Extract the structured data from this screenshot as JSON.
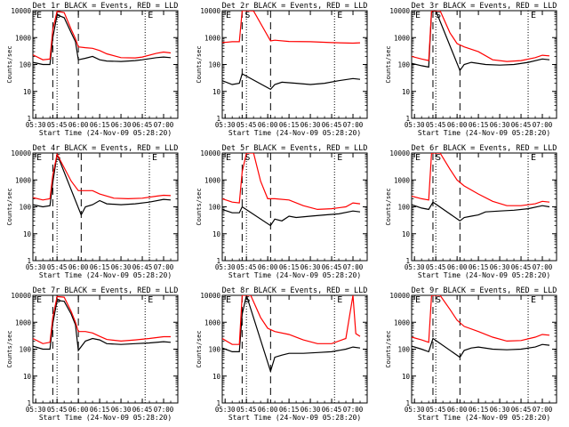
{
  "shared": {
    "ylabel": "Counts/sec",
    "xlabel": "Start Time (24-Nov-09 05:28:20)",
    "x_tick_labels": [
      "05:30",
      "05:45",
      "06:00",
      "06:15",
      "06:30",
      "06:45",
      "07:00"
    ],
    "y_tick_labels": [
      "1",
      "10",
      "100",
      "1000",
      "10000"
    ],
    "marker_labels": [
      "E",
      "S",
      "E"
    ]
  },
  "colors": {
    "events": "#000000",
    "lld": "#ff0000",
    "background": "#ffffff"
  },
  "chart_data": [
    {
      "type": "line",
      "title": "Det 1r BLACK = Events, RED = LLD",
      "xlabel": "Start Time (24-Nov-09 05:28:20)",
      "ylabel": "Counts/sec",
      "x_ticks": [
        "05:30",
        "05:45",
        "06:00",
        "06:15",
        "06:30",
        "06:45",
        "07:00"
      ],
      "y_scale": "log",
      "ylim": [
        1,
        10000
      ],
      "markers": {
        "dashed": [
          "05:42",
          "06:00"
        ],
        "dotted": [
          "05:45",
          "06:47"
        ],
        "labels": [
          "E",
          "S",
          "E"
        ]
      },
      "series": [
        {
          "name": "Events",
          "color": "#000000",
          "x": [
            "05:28",
            "05:35",
            "05:40",
            "05:42",
            "05:45",
            "05:50",
            "05:55",
            "05:58",
            "06:00",
            "06:05",
            "06:10",
            "06:15",
            "06:20",
            "06:30",
            "06:40",
            "06:45",
            "06:55",
            "07:00",
            "07:05"
          ],
          "y": [
            120,
            100,
            100,
            1000,
            7000,
            5500,
            1500,
            700,
            150,
            170,
            200,
            150,
            135,
            130,
            140,
            150,
            180,
            190,
            180
          ]
        },
        {
          "name": "LLD",
          "color": "#ff0000",
          "x": [
            "05:28",
            "05:35",
            "05:40",
            "05:42",
            "05:45",
            "05:50",
            "05:55",
            "05:58",
            "06:00",
            "06:05",
            "06:10",
            "06:15",
            "06:20",
            "06:30",
            "06:40",
            "06:45",
            "06:55",
            "07:00",
            "07:05"
          ],
          "y": [
            230,
            150,
            160,
            2000,
            9500,
            8500,
            2000,
            900,
            450,
            420,
            400,
            330,
            250,
            180,
            175,
            190,
            260,
            290,
            270
          ]
        }
      ]
    },
    {
      "type": "line",
      "title": "Det 2r BLACK = Events, RED = LLD",
      "xlabel": "Start Time (24-Nov-09 05:28:20)",
      "ylabel": "Counts/sec",
      "x_ticks": [
        "05:30",
        "05:45",
        "06:00",
        "06:15",
        "06:30",
        "06:45",
        "07:00"
      ],
      "y_scale": "log",
      "ylim": [
        1,
        10000
      ],
      "markers": {
        "dashed": [
          "05:42",
          "06:02"
        ],
        "dotted": [
          "05:45",
          "06:47"
        ],
        "labels": [
          "E",
          "S",
          "E"
        ]
      },
      "series": [
        {
          "name": "Events",
          "color": "#000000",
          "x": [
            "05:28",
            "05:35",
            "05:40",
            "05:42",
            "06:02",
            "06:05",
            "06:10",
            "06:20",
            "06:30",
            "06:40",
            "06:50",
            "07:00",
            "07:05"
          ],
          "y": [
            25,
            18,
            20,
            45,
            12,
            18,
            22,
            20,
            18,
            20,
            25,
            30,
            28
          ]
        },
        {
          "name": "LLD",
          "color": "#ff0000",
          "x": [
            "05:28",
            "05:35",
            "05:40",
            "05:42",
            "05:45",
            "05:50",
            "06:02",
            "06:05",
            "06:15",
            "06:30",
            "06:45",
            "07:00",
            "07:05"
          ],
          "y": [
            650,
            700,
            700,
            10000,
            10000,
            9800,
            750,
            800,
            720,
            700,
            650,
            620,
            640
          ]
        }
      ]
    },
    {
      "type": "line",
      "title": "Det 3r BLACK = Events, RED = LLD",
      "xlabel": "Start Time (24-Nov-09 05:28:20)",
      "ylabel": "Counts/sec",
      "x_ticks": [
        "05:30",
        "05:45",
        "06:00",
        "06:15",
        "06:30",
        "06:45",
        "07:00"
      ],
      "y_scale": "log",
      "ylim": [
        1,
        10000
      ],
      "markers": {
        "dashed": [
          "05:43",
          "06:02"
        ],
        "dotted": [
          "05:45",
          "06:50"
        ],
        "labels": [
          "E",
          "S",
          "E"
        ]
      },
      "series": [
        {
          "name": "Events",
          "color": "#000000",
          "x": [
            "05:28",
            "05:35",
            "05:40",
            "05:42",
            "05:45",
            "06:02",
            "06:05",
            "06:10",
            "06:20",
            "06:30",
            "06:40",
            "06:50",
            "07:00",
            "07:05"
          ],
          "y": [
            110,
            90,
            80,
            9000,
            10000,
            60,
            100,
            120,
            100,
            95,
            100,
            120,
            160,
            150
          ]
        },
        {
          "name": "LLD",
          "color": "#ff0000",
          "x": [
            "05:28",
            "05:35",
            "05:40",
            "05:42",
            "05:48",
            "05:55",
            "06:00",
            "06:05",
            "06:15",
            "06:25",
            "06:35",
            "06:45",
            "06:55",
            "07:00",
            "07:05"
          ],
          "y": [
            200,
            160,
            140,
            10000,
            10000,
            1500,
            600,
            450,
            300,
            150,
            130,
            140,
            180,
            220,
            210
          ]
        }
      ]
    },
    {
      "type": "line",
      "title": "Det 4r BLACK = Events, RED = LLD",
      "xlabel": "Start Time (24-Nov-09 05:28:20)",
      "ylabel": "Counts/sec",
      "x_ticks": [
        "05:30",
        "05:45",
        "06:00",
        "06:15",
        "06:30",
        "06:45",
        "07:00"
      ],
      "y_scale": "log",
      "ylim": [
        1,
        10000
      ],
      "markers": {
        "dashed": [
          "05:42",
          "06:02"
        ],
        "dotted": [
          "05:45",
          "06:50"
        ],
        "labels": [
          "E",
          "S",
          "E"
        ]
      },
      "series": [
        {
          "name": "Events",
          "color": "#000000",
          "x": [
            "05:28",
            "05:35",
            "05:40",
            "05:42",
            "05:45",
            "06:02",
            "06:05",
            "06:10",
            "06:15",
            "06:20",
            "06:30",
            "06:40",
            "06:50",
            "07:00",
            "07:05"
          ],
          "y": [
            120,
            100,
            110,
            800,
            9000,
            50,
            100,
            120,
            170,
            130,
            120,
            130,
            150,
            190,
            180
          ]
        },
        {
          "name": "LLD",
          "color": "#ff0000",
          "x": [
            "05:28",
            "05:35",
            "05:40",
            "05:42",
            "05:45",
            "05:55",
            "06:00",
            "06:10",
            "06:15",
            "06:25",
            "06:35",
            "06:45",
            "06:55",
            "07:00",
            "07:05"
          ],
          "y": [
            220,
            180,
            200,
            1500,
            9000,
            900,
            400,
            400,
            300,
            210,
            200,
            210,
            250,
            270,
            260
          ]
        }
      ]
    },
    {
      "type": "line",
      "title": "Det 5r BLACK = Events, RED = LLD",
      "xlabel": "Start Time (24-Nov-09 05:28:20)",
      "ylabel": "Counts/sec",
      "x_ticks": [
        "05:30",
        "05:45",
        "06:00",
        "06:15",
        "06:30",
        "06:45",
        "07:00"
      ],
      "y_scale": "log",
      "ylim": [
        1,
        10000
      ],
      "markers": {
        "dashed": [
          "05:42",
          "06:02"
        ],
        "dotted": [
          "05:45",
          "06:47"
        ],
        "labels": [
          "E",
          "S",
          "E"
        ]
      },
      "series": [
        {
          "name": "Events",
          "color": "#000000",
          "x": [
            "05:28",
            "05:35",
            "05:40",
            "05:42",
            "06:02",
            "06:05",
            "06:10",
            "06:15",
            "06:20",
            "06:30",
            "06:40",
            "06:50",
            "07:00",
            "07:05"
          ],
          "y": [
            80,
            60,
            60,
            100,
            20,
            35,
            30,
            45,
            40,
            45,
            50,
            55,
            70,
            65
          ]
        },
        {
          "name": "LLD",
          "color": "#ff0000",
          "x": [
            "05:28",
            "05:35",
            "05:40",
            "05:42",
            "05:45",
            "05:50",
            "05:55",
            "06:00",
            "06:05",
            "06:15",
            "06:25",
            "06:35",
            "06:45",
            "06:55",
            "07:00",
            "07:05"
          ],
          "y": [
            200,
            150,
            140,
            2000,
            10000,
            10000,
            900,
            200,
            200,
            180,
            110,
            80,
            85,
            100,
            140,
            130
          ]
        }
      ]
    },
    {
      "type": "line",
      "title": "Det 6r BLACK = Events, RED = LLD",
      "xlabel": "Start Time (24-Nov-09 05:28:20)",
      "ylabel": "Counts/sec",
      "x_ticks": [
        "05:30",
        "05:45",
        "06:00",
        "06:15",
        "06:30",
        "06:45",
        "07:00"
      ],
      "y_scale": "log",
      "ylim": [
        1,
        10000
      ],
      "markers": {
        "dashed": [
          "05:43",
          "06:02"
        ],
        "dotted": [
          "05:45",
          "06:50"
        ],
        "labels": [
          "E",
          "S",
          "E"
        ]
      },
      "series": [
        {
          "name": "Events",
          "color": "#000000",
          "x": [
            "05:28",
            "05:35",
            "05:40",
            "05:43",
            "06:02",
            "06:05",
            "06:10",
            "06:15",
            "06:20",
            "06:30",
            "06:40",
            "06:50",
            "07:00",
            "07:05"
          ],
          "y": [
            120,
            90,
            80,
            150,
            30,
            40,
            45,
            50,
            65,
            70,
            75,
            85,
            110,
            100
          ]
        },
        {
          "name": "LLD",
          "color": "#ff0000",
          "x": [
            "05:28",
            "05:35",
            "05:40",
            "05:42",
            "05:48",
            "05:55",
            "06:00",
            "06:05",
            "06:15",
            "06:25",
            "06:35",
            "06:45",
            "06:55",
            "07:00",
            "07:05"
          ],
          "y": [
            250,
            200,
            180,
            10000,
            10000,
            2500,
            1000,
            600,
            300,
            160,
            110,
            110,
            130,
            160,
            150
          ]
        }
      ]
    },
    {
      "type": "line",
      "title": "Det 7r BLACK = Events, RED = LLD",
      "xlabel": "Start Time (24-Nov-09 05:28:20)",
      "ylabel": "Counts/sec",
      "x_ticks": [
        "05:30",
        "05:45",
        "06:00",
        "06:15",
        "06:30",
        "06:45",
        "07:00"
      ],
      "y_scale": "log",
      "ylim": [
        1,
        10000
      ],
      "markers": {
        "dashed": [
          "05:42",
          "06:00"
        ],
        "dotted": [
          "05:45",
          "06:47"
        ],
        "labels": [
          "E",
          "S",
          "E"
        ]
      },
      "series": [
        {
          "name": "Events",
          "color": "#000000",
          "x": [
            "05:28",
            "05:35",
            "05:40",
            "05:42",
            "05:45",
            "05:50",
            "05:55",
            "05:58",
            "06:00",
            "06:05",
            "06:10",
            "06:15",
            "06:20",
            "06:30",
            "06:40",
            "06:50",
            "07:00",
            "07:05"
          ],
          "y": [
            130,
            100,
            100,
            900,
            6500,
            6000,
            2000,
            800,
            90,
            200,
            250,
            220,
            160,
            150,
            160,
            170,
            190,
            180
          ]
        },
        {
          "name": "LLD",
          "color": "#ff0000",
          "x": [
            "05:28",
            "05:35",
            "05:40",
            "05:42",
            "05:45",
            "05:50",
            "05:55",
            "05:58",
            "06:00",
            "06:05",
            "06:10",
            "06:15",
            "06:20",
            "06:30",
            "06:40",
            "06:50",
            "07:00",
            "07:05"
          ],
          "y": [
            250,
            160,
            180,
            1500,
            9000,
            8500,
            2500,
            1000,
            450,
            450,
            400,
            300,
            230,
            200,
            220,
            250,
            290,
            290
          ]
        }
      ]
    },
    {
      "type": "line",
      "title": "Det 8r BLACK = Events, RED = LLD",
      "xlabel": "Start Time (24-Nov-09 05:28:20)",
      "ylabel": "Counts/sec",
      "x_ticks": [
        "05:30",
        "05:45",
        "06:00",
        "06:15",
        "06:30",
        "06:45",
        "07:00"
      ],
      "y_scale": "log",
      "ylim": [
        1,
        10000
      ],
      "markers": {
        "dashed": [
          "05:42",
          "06:02"
        ],
        "dotted": [
          "05:45",
          "06:47"
        ],
        "labels": [
          "E",
          "S",
          "E"
        ]
      },
      "series": [
        {
          "name": "Events",
          "color": "#000000",
          "x": [
            "05:28",
            "05:35",
            "05:40",
            "05:42",
            "05:45",
            "06:02",
            "06:05",
            "06:10",
            "06:15",
            "06:25",
            "06:35",
            "06:45",
            "06:55",
            "07:00",
            "07:05"
          ],
          "y": [
            110,
            80,
            80,
            2000,
            10000,
            15,
            50,
            60,
            70,
            70,
            75,
            80,
            100,
            120,
            110
          ]
        },
        {
          "name": "LLD",
          "color": "#ff0000",
          "x": [
            "05:28",
            "05:35",
            "05:40",
            "05:42",
            "05:48",
            "05:55",
            "06:00",
            "06:05",
            "06:15",
            "06:25",
            "06:35",
            "06:45",
            "06:55",
            "07:00",
            "07:02",
            "07:05"
          ],
          "y": [
            250,
            150,
            150,
            10000,
            10000,
            1500,
            600,
            450,
            350,
            220,
            160,
            160,
            250,
            10000,
            380,
            300
          ]
        }
      ]
    },
    {
      "type": "line",
      "title": "Det 9r BLACK = Events, RED = LLD",
      "xlabel": "Start Time (24-Nov-09 05:28:20)",
      "ylabel": "Counts/sec",
      "x_ticks": [
        "05:30",
        "05:45",
        "06:00",
        "06:15",
        "06:30",
        "06:45",
        "07:00"
      ],
      "y_scale": "log",
      "ylim": [
        1,
        10000
      ],
      "markers": {
        "dashed": [
          "05:43",
          "06:02"
        ],
        "dotted": [
          "05:45",
          "06:50"
        ],
        "labels": [
          "E",
          "S",
          "E"
        ]
      },
      "series": [
        {
          "name": "Events",
          "color": "#000000",
          "x": [
            "05:28",
            "05:35",
            "05:40",
            "05:43",
            "06:02",
            "06:05",
            "06:10",
            "06:15",
            "06:25",
            "06:35",
            "06:45",
            "06:55",
            "07:00",
            "07:05"
          ],
          "y": [
            130,
            100,
            80,
            250,
            50,
            90,
            110,
            120,
            100,
            95,
            100,
            120,
            150,
            140
          ]
        },
        {
          "name": "LLD",
          "color": "#ff0000",
          "x": [
            "05:28",
            "05:35",
            "05:40",
            "05:42",
            "05:48",
            "05:55",
            "06:00",
            "06:05",
            "06:15",
            "06:25",
            "06:35",
            "06:45",
            "06:55",
            "07:00",
            "07:05"
          ],
          "y": [
            280,
            220,
            180,
            10000,
            10000,
            3000,
            1200,
            700,
            450,
            280,
            200,
            210,
            280,
            350,
            330
          ]
        }
      ]
    }
  ]
}
